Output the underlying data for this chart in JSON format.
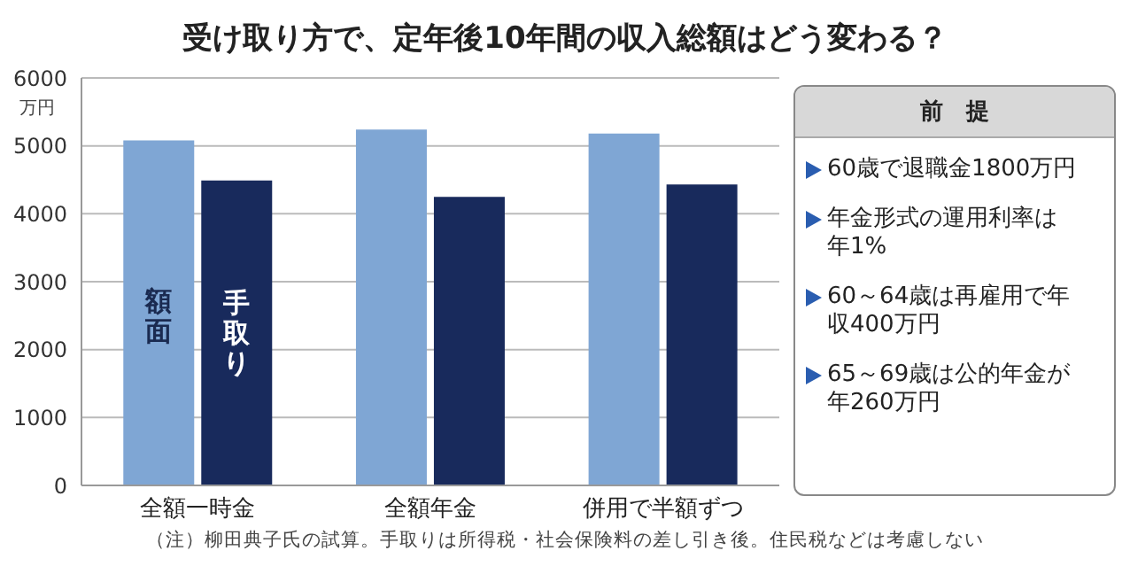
{
  "chart_data": {
    "type": "bar",
    "title": "受け取り方で、定年後10年間の収入総額はどう変わる？",
    "ylabel": "万円",
    "categories": [
      "全額一時金",
      "全額年金",
      "併用で半額ずつ"
    ],
    "series": [
      {
        "name": "額面",
        "color": "#7fa6d4",
        "values": [
          5080,
          5240,
          5180
        ]
      },
      {
        "name": "手取り",
        "color": "#182a5c",
        "values": [
          4490,
          4250,
          4430
        ]
      }
    ],
    "ylim": [
      0,
      6000
    ],
    "yticks": [
      0,
      1000,
      2000,
      3000,
      4000,
      5000,
      6000
    ],
    "grid": "y",
    "legend": false,
    "annotations": [
      "前　提",
      "60歳で退職金1800万円",
      "年金形式の運用利率は年1%",
      "60～64歳は再雇用で年収400万円",
      "65～69歳は公的年金が年260万円",
      "（注）柳田典子氏の試算。手取りは所得税・社会保険料の差し引き後。住民税などは考慮しない"
    ]
  }
}
